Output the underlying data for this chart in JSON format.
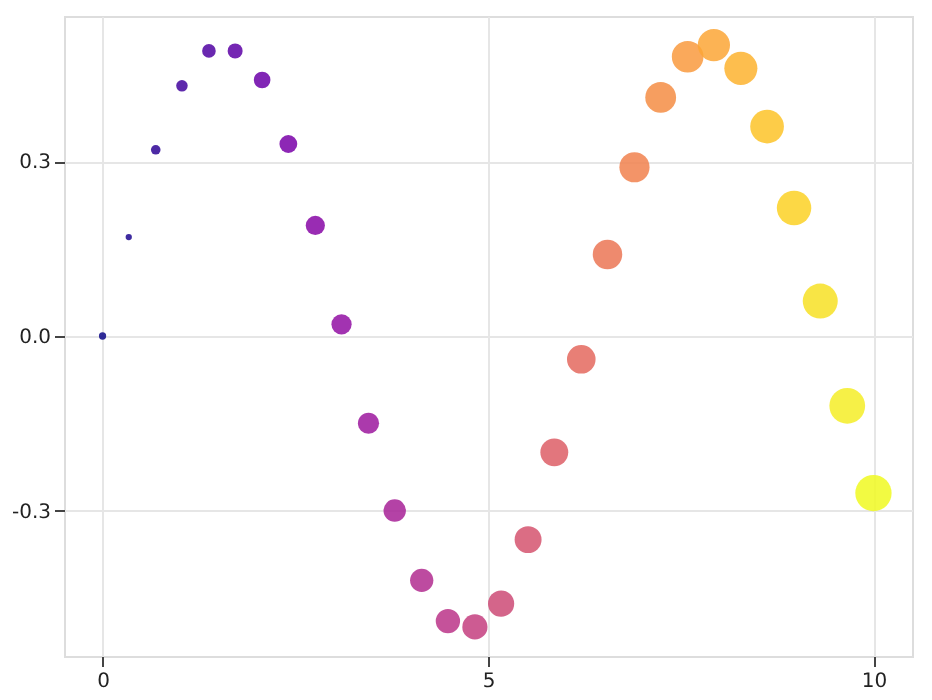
{
  "chart_data": {
    "type": "bubble",
    "x": [
      0,
      0.34,
      0.69,
      1.03,
      1.38,
      1.72,
      2.07,
      2.41,
      2.76,
      3.1,
      3.45,
      3.79,
      4.14,
      4.48,
      4.83,
      5.17,
      5.52,
      5.86,
      6.21,
      6.55,
      6.9,
      7.24,
      7.59,
      7.93,
      8.28,
      8.62,
      8.97,
      9.31,
      9.66,
      10
    ],
    "values": [
      0,
      0.17,
      0.32,
      0.43,
      0.49,
      0.49,
      0.44,
      0.33,
      0.19,
      0.02,
      -0.15,
      -0.3,
      -0.42,
      -0.49,
      -0.5,
      -0.46,
      -0.35,
      -0.2,
      -0.04,
      0.14,
      0.29,
      0.41,
      0.48,
      0.5,
      0.46,
      0.36,
      0.22,
      0.06,
      -0.12,
      -0.27
    ],
    "sizes": [
      0.04,
      0.03,
      0.07,
      0.1,
      0.14,
      0.17,
      0.21,
      0.24,
      0.28,
      0.31,
      0.34,
      0.38,
      0.41,
      0.45,
      0.48,
      0.52,
      0.55,
      0.59,
      0.62,
      0.66,
      0.69,
      0.72,
      0.76,
      0.79,
      0.83,
      0.86,
      0.9,
      0.93,
      0.97,
      1
    ],
    "colors": [
      "#0d0887",
      "#1c068f",
      "#2e0595",
      "#42039d",
      "#5002a2",
      "#5d01a6",
      "#6b00a8",
      "#7901a8",
      "#8707a6",
      "#920fa3",
      "#9c179e",
      "#a72197",
      "#b12b8f",
      "#bb3488",
      "#c43e7f",
      "#cd4a76",
      "#d5536f",
      "#dd5e66",
      "#e4695e",
      "#eb7655",
      "#f1814d",
      "#f58d44",
      "#f99a3e",
      "#fca636",
      "#fdb32f",
      "#fdc328",
      "#fbd124",
      "#f7e024",
      "#f4ed27",
      "#f0f921"
    ],
    "xlim": [
      -0.5,
      10.5
    ],
    "ylim": [
      -0.55,
      0.55
    ],
    "xticks": [
      0,
      5,
      10
    ],
    "yticks": [
      {
        "value": -0.3,
        "label": "-0.3"
      },
      {
        "value": 0,
        "label": "0.0"
      },
      0.3
    ],
    "grid": true,
    "legend": false
  }
}
